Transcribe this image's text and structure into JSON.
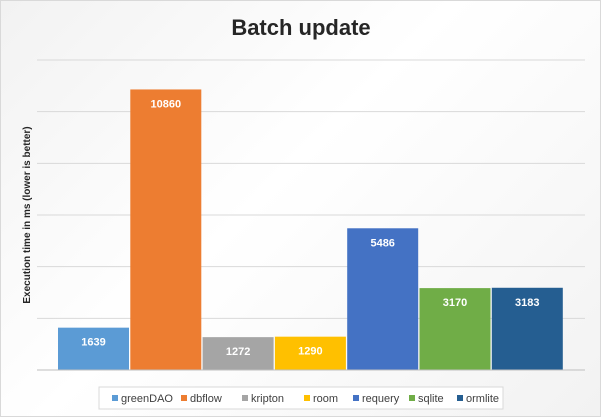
{
  "chart_data": {
    "type": "bar",
    "title": "Batch update",
    "xlabel": "",
    "ylabel": "Execution time in ms (lower is better)",
    "ylim": [
      0,
      12000
    ],
    "grid": true,
    "legend_position": "bottom",
    "categories": [
      "greenDAO",
      "dbflow",
      "kripton",
      "room",
      "requery",
      "sqlite",
      "ormlite"
    ],
    "values": [
      1639,
      10860,
      1272,
      1290,
      5486,
      3170,
      3183
    ],
    "colors": [
      "#5b9bd5",
      "#ed7d31",
      "#a5a5a5",
      "#ffc000",
      "#4472c4",
      "#70ad47",
      "#255e91"
    ]
  }
}
